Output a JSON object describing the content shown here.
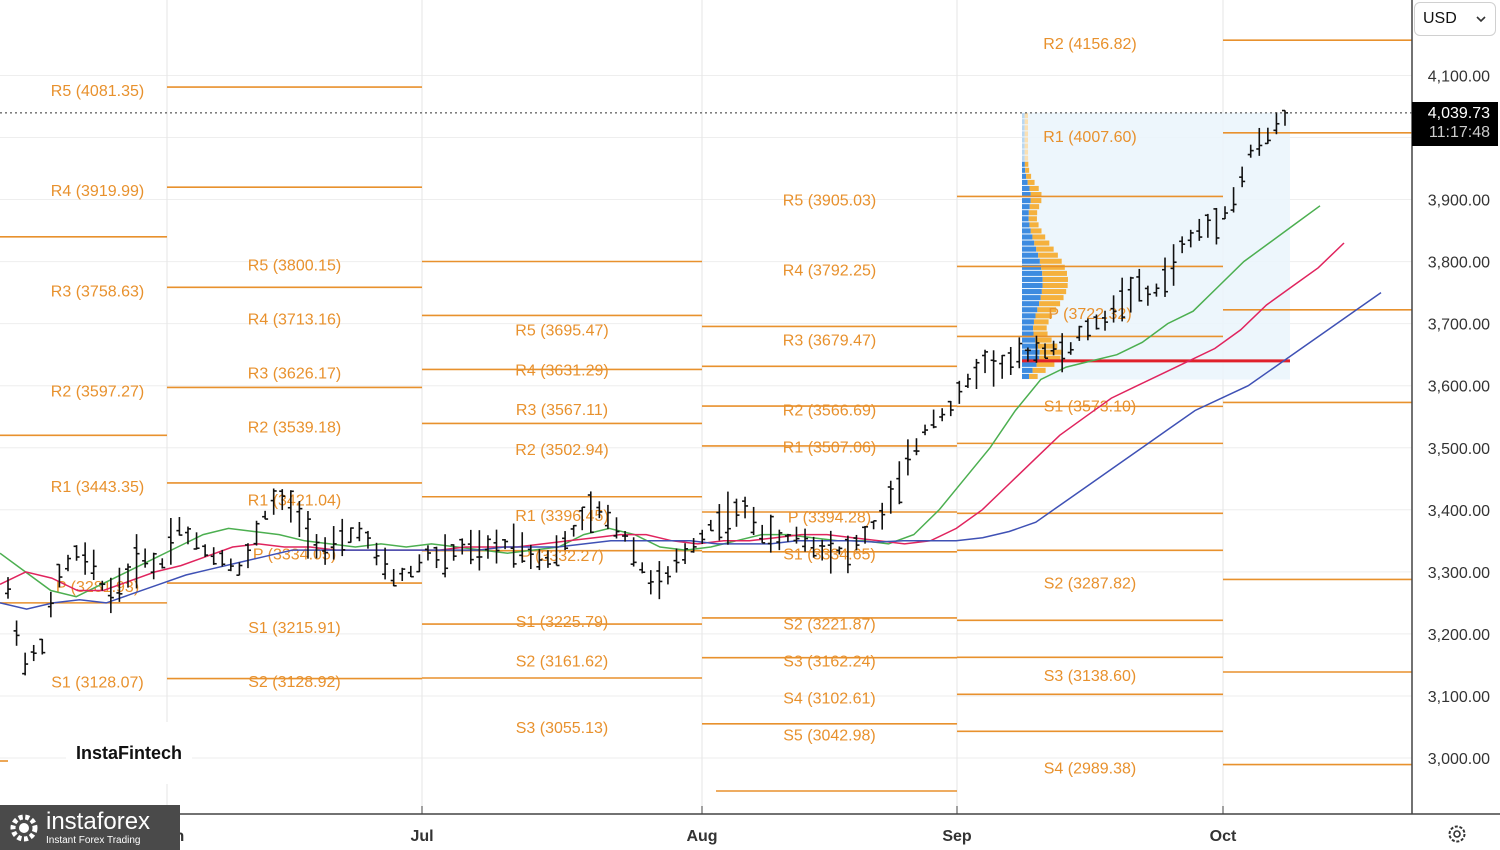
{
  "currency_selector": {
    "value": "USD",
    "chevron_icon": "chevron-down-icon"
  },
  "last_price": {
    "price": "4,039.73",
    "countdown": "11:17:48"
  },
  "brand_watermark": "InstaFintech",
  "logo": {
    "name": "instaforex",
    "tagline": "Instant Forex Trading"
  },
  "settings_icon": "gear-icon",
  "colors": {
    "pivot": "#e8912d",
    "ma_fast": "#4caf50",
    "ma_mid": "#e0245e",
    "ma_slow": "#3f51b5",
    "bar": "#111111",
    "poc": "#e0202a",
    "volume_buy": "#3d8be0",
    "volume_sell": "#f5b13d"
  },
  "chart_data": {
    "type": "bar",
    "title": "",
    "xlabel": "",
    "ylabel": "",
    "y_axis": {
      "ticks": [
        "3,000.00",
        "3,100.00",
        "3,200.00",
        "3,300.00",
        "3,400.00",
        "3,500.00",
        "3,600.00",
        "3,700.00",
        "3,800.00",
        "3,900.00",
        "4,100.00"
      ],
      "tick_values": [
        3000,
        3100,
        3200,
        3300,
        3400,
        3500,
        3600,
        3700,
        3800,
        3900,
        4100
      ],
      "range": [
        2900,
        4170
      ]
    },
    "x_axis": {
      "months": [
        "Jul",
        "Aug",
        "Sep",
        "Oct"
      ],
      "partial_first_month": "Jun"
    },
    "last_price": 4039.73,
    "pivot_periods": [
      {
        "levels": [
          {
            "name": "R5",
            "value": 4081.35,
            "label": "R5 (4081.35)"
          },
          {
            "name": "R4",
            "value": 3919.99,
            "label": "R4 (3919.99)"
          },
          {
            "name": "R3",
            "value": 3758.63,
            "label": "R3 (3758.63)"
          },
          {
            "name": "R2",
            "value": 3597.27,
            "label": "R2 (3597.27)"
          },
          {
            "name": "R1",
            "value": 3443.35,
            "label": "R1 (3443.35)"
          },
          {
            "name": "P",
            "value": 3281.93,
            "label": "P (3281.93)"
          },
          {
            "name": "S1",
            "value": 3128.07,
            "label": "S1 (3128.07)"
          }
        ]
      },
      {
        "levels": [
          {
            "name": "R5",
            "value": 3800.15,
            "label": "R5 (3800.15)"
          },
          {
            "name": "R4",
            "value": 3713.16,
            "label": "R4 (3713.16)"
          },
          {
            "name": "R3",
            "value": 3626.17,
            "label": "R3 (3626.17)"
          },
          {
            "name": "R2",
            "value": 3539.18,
            "label": "R2 (3539.18)"
          },
          {
            "name": "R1",
            "value": 3421.04,
            "label": "R1 (3421.04)"
          },
          {
            "name": "P",
            "value": 3334.05,
            "label": "P (3334.05)"
          },
          {
            "name": "S1",
            "value": 3215.91,
            "label": "S1 (3215.91)"
          },
          {
            "name": "S2",
            "value": 3128.92,
            "label": "S2 (3128.92)"
          }
        ]
      },
      {
        "levels": [
          {
            "name": "R5",
            "value": 3695.47,
            "label": "R5 (3695.47)"
          },
          {
            "name": "R4",
            "value": 3631.29,
            "label": "R4 (3631.29)"
          },
          {
            "name": "R3",
            "value": 3567.11,
            "label": "R3 (3567.11)"
          },
          {
            "name": "R2",
            "value": 3502.94,
            "label": "R2 (3502.94)"
          },
          {
            "name": "R1",
            "value": 3396.45,
            "label": "R1 (3396.45)"
          },
          {
            "name": "P",
            "value": 3332.27,
            "label": "P (3332.27)"
          },
          {
            "name": "S1",
            "value": 3225.79,
            "label": "S1 (3225.79)"
          },
          {
            "name": "S2",
            "value": 3161.62,
            "label": "S2 (3161.62)"
          },
          {
            "name": "S3",
            "value": 3055.13,
            "label": "S3 (3055.13)"
          }
        ]
      },
      {
        "levels": [
          {
            "name": "R5",
            "value": 3905.03,
            "label": "R5 (3905.03)"
          },
          {
            "name": "R4",
            "value": 3792.25,
            "label": "R4 (3792.25)"
          },
          {
            "name": "R3",
            "value": 3679.47,
            "label": "R3 (3679.47)"
          },
          {
            "name": "R2",
            "value": 3566.69,
            "label": "R2 (3566.69)"
          },
          {
            "name": "R1",
            "value": 3507.06,
            "label": "R1 (3507.06)"
          },
          {
            "name": "P",
            "value": 3394.28,
            "label": "P (3394.28)"
          },
          {
            "name": "S1",
            "value": 3334.65,
            "label": "S1 (3334.65)"
          },
          {
            "name": "S2",
            "value": 3221.87,
            "label": "S2 (3221.87)"
          },
          {
            "name": "S3",
            "value": 3162.24,
            "label": "S3 (3162.24)"
          },
          {
            "name": "S4",
            "value": 3102.61,
            "label": "S4 (3102.61)"
          },
          {
            "name": "S5",
            "value": 3042.98,
            "label": "S5 (3042.98)"
          }
        ]
      },
      {
        "levels": [
          {
            "name": "R2",
            "value": 4156.82,
            "label": "R2 (4156.82)"
          },
          {
            "name": "R1",
            "value": 4007.6,
            "label": "R1 (4007.60)"
          },
          {
            "name": "P",
            "value": 3722.32,
            "label": "P (3722.32)"
          },
          {
            "name": "S1",
            "value": 3573.1,
            "label": "S1 (3573.10)"
          },
          {
            "name": "S2",
            "value": 3287.82,
            "label": "S2 (3287.82)"
          },
          {
            "name": "S3",
            "value": 3138.6,
            "label": "S3 (3138.60)"
          },
          {
            "name": "S4",
            "value": 2989.38,
            "label": "S4 (2989.38)"
          }
        ]
      }
    ],
    "volume_profile": {
      "range": [
        3610,
        4040
      ],
      "poc": 3640
    },
    "price_anchors": [
      3270,
      3150,
      3180,
      3290,
      3330,
      3310,
      3260,
      3290,
      3330,
      3300,
      3380,
      3350,
      3330,
      3320,
      3300,
      3380,
      3420,
      3400,
      3360,
      3330,
      3350,
      3370,
      3320,
      3290,
      3300,
      3330,
      3320,
      3340,
      3330,
      3340,
      3350,
      3330,
      3320,
      3340,
      3380,
      3400,
      3380,
      3350,
      3290,
      3280,
      3320,
      3350,
      3380,
      3390,
      3400,
      3360,
      3350,
      3360,
      3340,
      3340,
      3330,
      3360,
      3390,
      3440,
      3500,
      3550,
      3560,
      3600,
      3640,
      3630,
      3640,
      3660,
      3660,
      3650,
      3690,
      3700,
      3730,
      3760,
      3740,
      3780,
      3830,
      3850,
      3870,
      3900,
      3980,
      4000,
      4039.73
    ],
    "moving_averages": [
      {
        "color_key": "ma_fast",
        "values": [
          3330,
          3300,
          3270,
          3260,
          3280,
          3300,
          3320,
          3340,
          3360,
          3370,
          3365,
          3360,
          3350,
          3345,
          3340,
          3345,
          3340,
          3345,
          3340,
          3335,
          3330,
          3335,
          3340,
          3360,
          3370,
          3360,
          3340,
          3335,
          3340,
          3350,
          3360,
          3360,
          3355,
          3350,
          3350,
          3345,
          3360,
          3400,
          3450,
          3500,
          3560,
          3610,
          3630,
          3640,
          3650,
          3670,
          3700,
          3720,
          3760,
          3800,
          3830,
          3860,
          3890
        ]
      },
      {
        "color_key": "ma_mid",
        "values": [
          3280,
          3300,
          3290,
          3270,
          3270,
          3285,
          3300,
          3310,
          3325,
          3340,
          3345,
          3340,
          3340,
          3335,
          3335,
          3335,
          3335,
          3335,
          3340,
          3340,
          3340,
          3345,
          3350,
          3355,
          3360,
          3360,
          3350,
          3345,
          3350,
          3350,
          3355,
          3360,
          3360,
          3355,
          3350,
          3345,
          3350,
          3370,
          3400,
          3440,
          3480,
          3520,
          3550,
          3580,
          3600,
          3620,
          3640,
          3660,
          3690,
          3730,
          3760,
          3790,
          3830
        ]
      },
      {
        "color_key": "ma_slow",
        "values": [
          3250,
          3240,
          3250,
          3255,
          3250,
          3265,
          3280,
          3295,
          3305,
          3315,
          3325,
          3335,
          3335,
          3335,
          3335,
          3335,
          3335,
          3335,
          3335,
          3340,
          3340,
          3340,
          3345,
          3350,
          3350,
          3350,
          3350,
          3345,
          3345,
          3345,
          3350,
          3350,
          3350,
          3348,
          3350,
          3350,
          3350,
          3355,
          3365,
          3380,
          3410,
          3440,
          3470,
          3500,
          3530,
          3560,
          3580,
          3600,
          3630,
          3660,
          3690,
          3720,
          3750
        ]
      }
    ]
  }
}
